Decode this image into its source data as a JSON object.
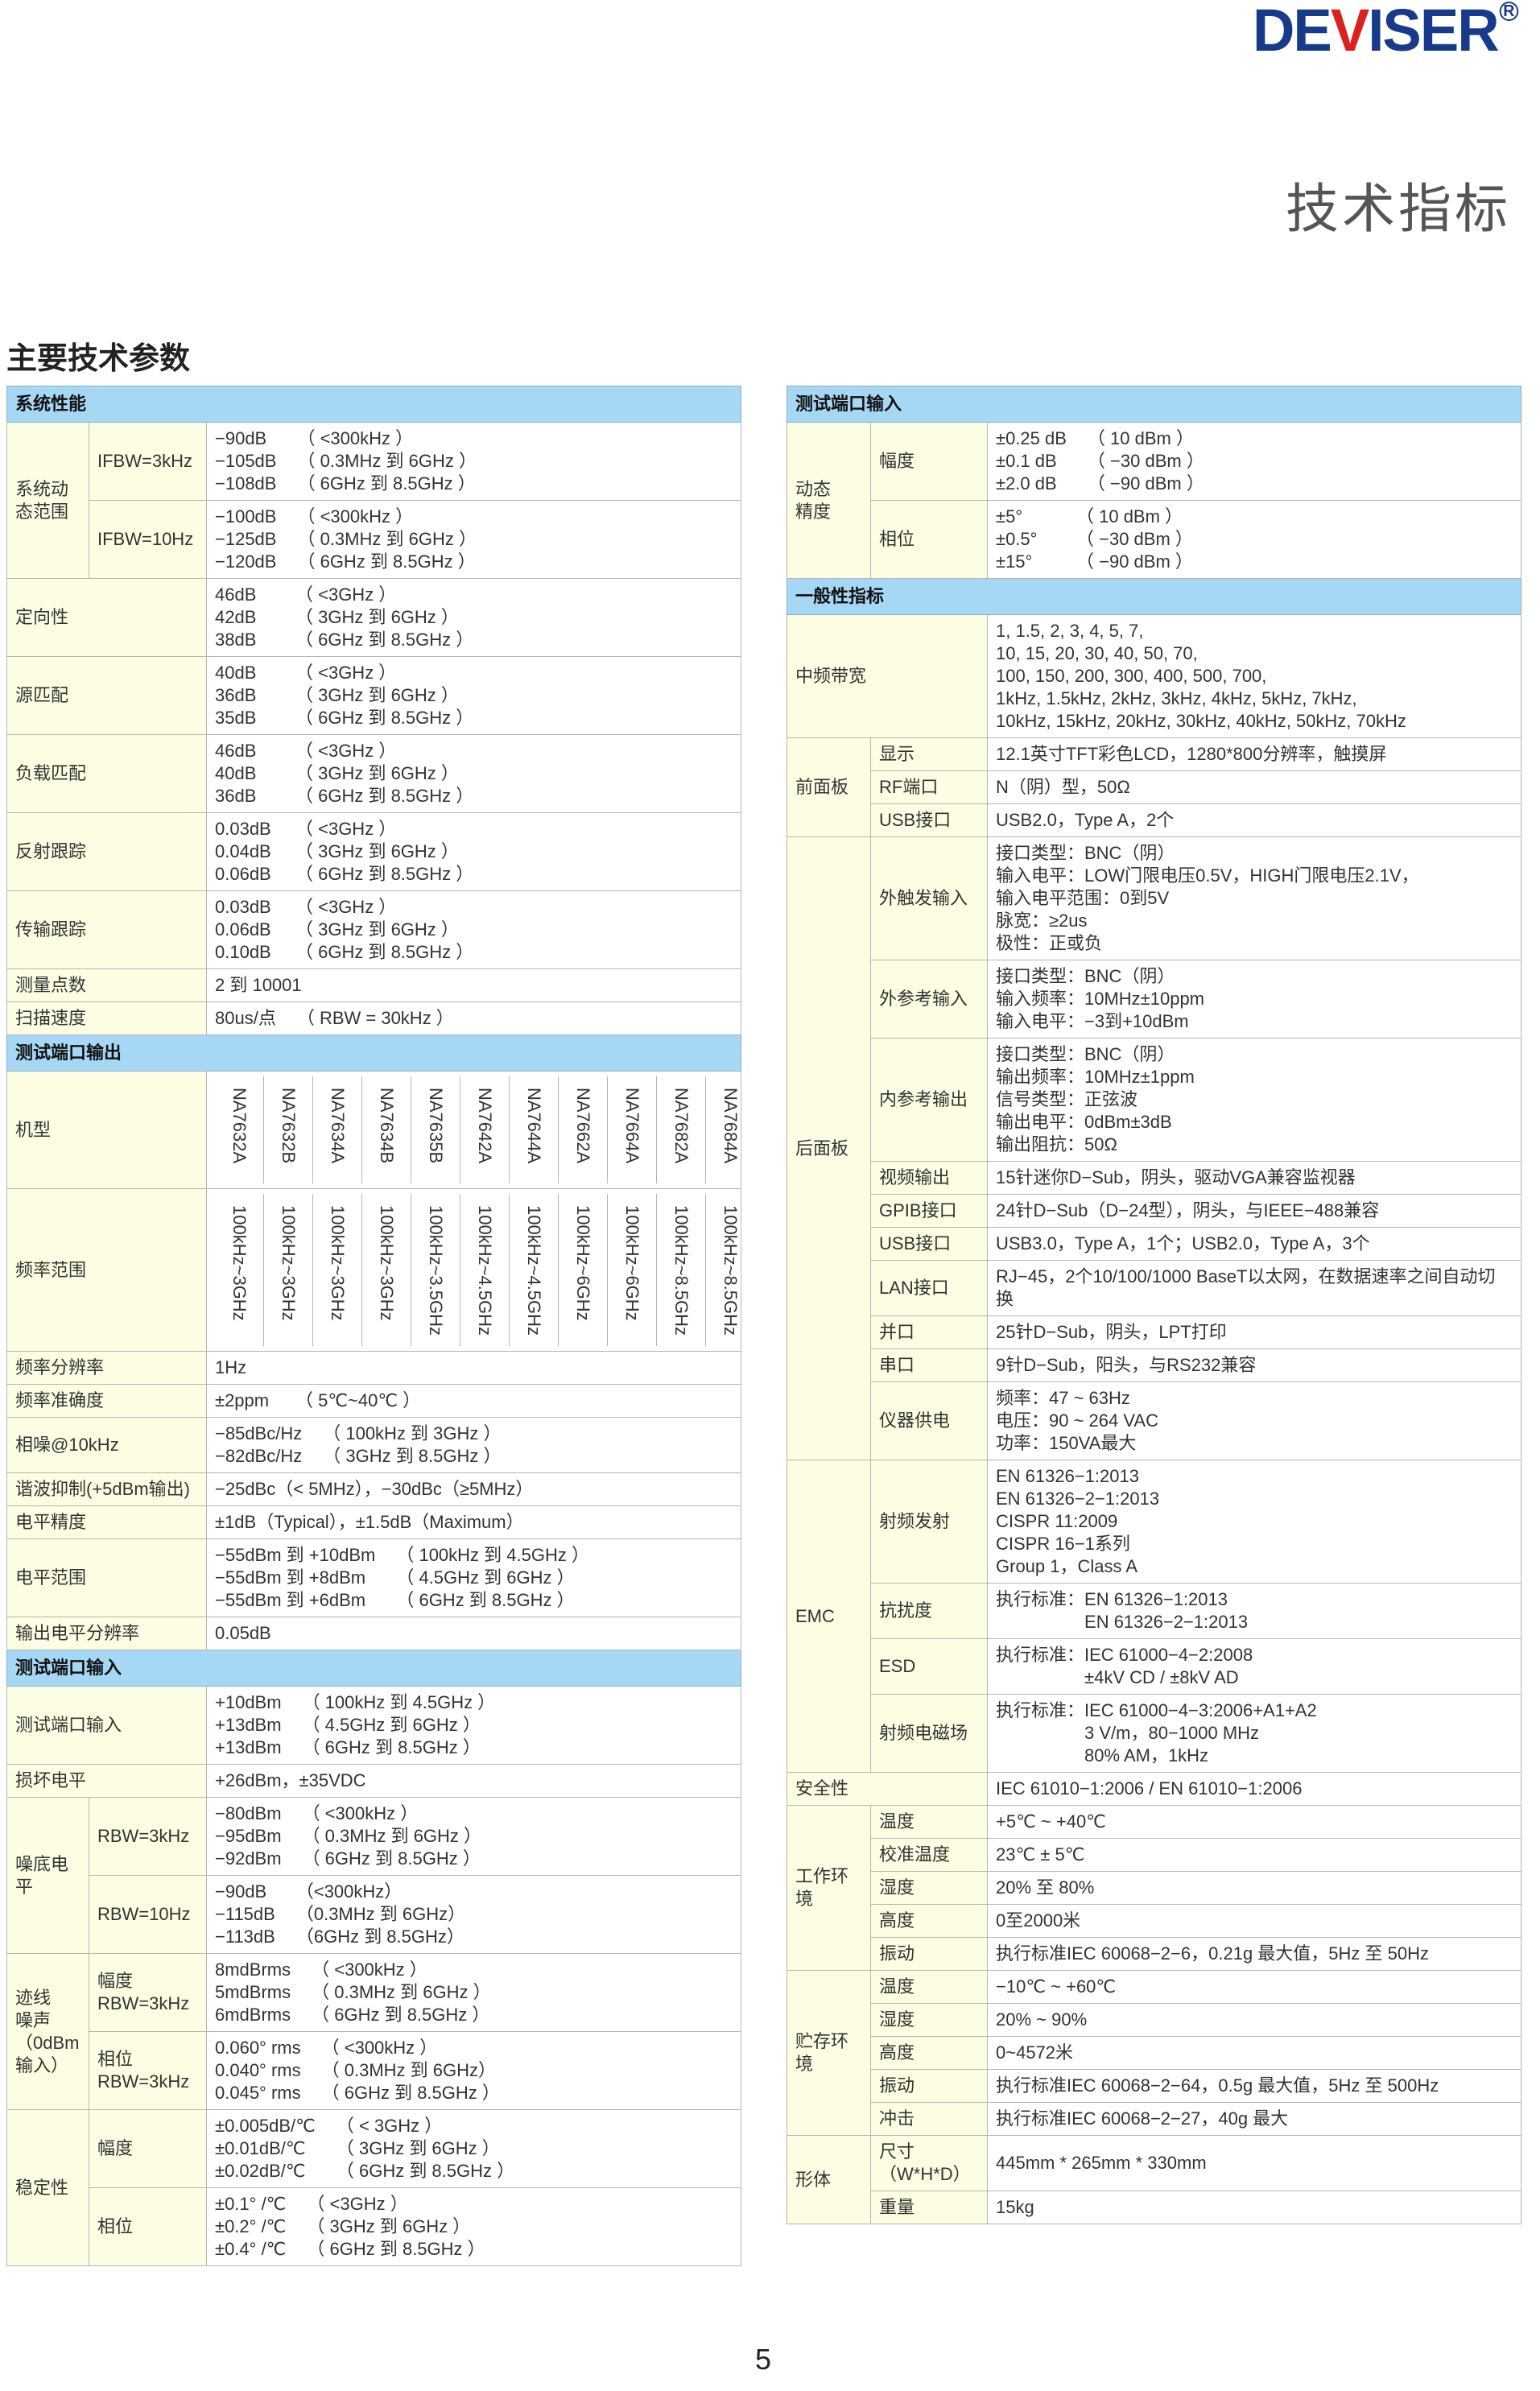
{
  "logo": {
    "text_d": "DE",
    "text_v": "V",
    "text_rest": "ISER",
    "registered": "R",
    "colors": {
      "blue": "#173b8a",
      "red": "#d9211e"
    }
  },
  "page_title": "技术指标",
  "section_title": "主要技术参数",
  "colors": {
    "header_bg": "#a6d7f4",
    "label_bg": "#fdfde4"
  },
  "left_table": [
    {
      "title": "系统性能",
      "rows": [
        {
          "label": "系统动态范围",
          "subrows": [
            {
              "label": "IFBW=3kHz",
              "lines": [
                [
                  "−90dB",
                  "（ <300kHz ）"
                ],
                [
                  "−105dB",
                  "（ 0.3MHz 到 6GHz ）"
                ],
                [
                  "−108dB",
                  "（ 6GHz 到 8.5GHz ）"
                ]
              ]
            },
            {
              "label": "IFBW=10Hz",
              "lines": [
                [
                  "−100dB",
                  "（ <300kHz ）"
                ],
                [
                  "−125dB",
                  "（ 0.3MHz 到 6GHz ）"
                ],
                [
                  "−120dB",
                  "（ 6GHz 到 8.5GHz ）"
                ]
              ]
            }
          ]
        },
        {
          "label": "定向性",
          "lines": [
            [
              "46dB",
              "（ <3GHz ）"
            ],
            [
              "42dB",
              "（ 3GHz 到 6GHz ）"
            ],
            [
              "38dB",
              "（ 6GHz 到 8.5GHz ）"
            ]
          ]
        },
        {
          "label": "源匹配",
          "lines": [
            [
              "40dB",
              "（ <3GHz ）"
            ],
            [
              "36dB",
              "（ 3GHz 到 6GHz ）"
            ],
            [
              "35dB",
              "（ 6GHz 到 8.5GHz ）"
            ]
          ]
        },
        {
          "label": "负载匹配",
          "lines": [
            [
              "46dB",
              "（ <3GHz ）"
            ],
            [
              "40dB",
              "（ 3GHz 到 6GHz ）"
            ],
            [
              "36dB",
              "（ 6GHz 到 8.5GHz ）"
            ]
          ]
        },
        {
          "label": "反射跟踪",
          "lines": [
            [
              "0.03dB",
              "（ <3GHz ）"
            ],
            [
              "0.04dB",
              "（ 3GHz 到 6GHz ）"
            ],
            [
              "0.06dB",
              "（ 6GHz 到 8.5GHz ）"
            ]
          ]
        },
        {
          "label": "传输跟踪",
          "lines": [
            [
              "0.03dB",
              "（ <3GHz ）"
            ],
            [
              "0.06dB",
              "（ 3GHz 到 6GHz ）"
            ],
            [
              "0.10dB",
              "（ 6GHz 到 8.5GHz ）"
            ]
          ]
        },
        {
          "label": "测量点数",
          "lines": [
            "2 到 10001"
          ]
        },
        {
          "label": "扫描速度",
          "lines": [
            [
              "80us/点",
              "（ RBW = 30kHz ）"
            ]
          ]
        }
      ]
    },
    {
      "title": "测试端口输出",
      "rows": [
        {
          "label": "机型",
          "vertical": [
            "NA7632A",
            "NA7632B",
            "NA7634A",
            "NA7634B",
            "NA7635B",
            "NA7642A",
            "NA7644A",
            "NA7662A",
            "NA7664A",
            "NA7682A",
            "NA7684A"
          ]
        },
        {
          "label": "频率范围",
          "vertical": [
            "100kHz~3GHz",
            "100kHz~3GHz",
            "100kHz~3GHz",
            "100kHz~3GHz",
            "100kHz~3.5GHz",
            "100kHz~4.5GHz",
            "100kHz~4.5GHz",
            "100kHz~6GHz",
            "100kHz~6GHz",
            "100kHz~8.5GHz",
            "100kHz~8.5GHz"
          ]
        },
        {
          "label": "频率分辨率",
          "lines": [
            "1Hz"
          ]
        },
        {
          "label": "频率准确度",
          "lines": [
            [
              "±2ppm",
              "（ 5℃~40℃ ）"
            ]
          ]
        },
        {
          "label": "相噪@10kHz",
          "lines": [
            [
              "−85dBc/Hz",
              "（ 100kHz 到 3GHz ）"
            ],
            [
              "−82dBc/Hz",
              "（ 3GHz 到 8.5GHz ）"
            ]
          ]
        },
        {
          "label": "谐波抑制(+5dBm输出)",
          "lines": [
            "−25dBc（< 5MHz），−30dBc（≥5MHz）"
          ]
        },
        {
          "label": "电平精度",
          "lines": [
            "±1dB（Typical），±1.5dB（Maximum）"
          ]
        },
        {
          "label": "电平范围",
          "lines": [
            [
              "−55dBm 到 +10dBm",
              "（ 100kHz 到 4.5GHz ）"
            ],
            [
              "−55dBm 到 +8dBm",
              "（ 4.5GHz 到 6GHz ）"
            ],
            [
              "−55dBm 到 +6dBm",
              "（ 6GHz 到 8.5GHz ）"
            ]
          ]
        },
        {
          "label": "输出电平分辨率",
          "lines": [
            "0.05dB"
          ]
        }
      ]
    },
    {
      "title": "测试端口输入",
      "rows": [
        {
          "label": "测试端口输入",
          "lines": [
            [
              "+10dBm",
              "（ 100kHz 到 4.5GHz ）"
            ],
            [
              "+13dBm",
              "（ 4.5GHz 到 6GHz ）"
            ],
            [
              "+13dBm",
              "（ 6GHz 到 8.5GHz ）"
            ]
          ]
        },
        {
          "label": "损坏电平",
          "lines": [
            "+26dBm，±35VDC"
          ]
        },
        {
          "label": "噪底电平",
          "subrows": [
            {
              "label": "RBW=3kHz",
              "lines": [
                [
                  "−80dBm",
                  "（ <300kHz ）"
                ],
                [
                  "−95dBm",
                  "（ 0.3MHz 到 6GHz ）"
                ],
                [
                  "−92dBm",
                  "（ 6GHz 到 8.5GHz ）"
                ]
              ]
            },
            {
              "label": "RBW=10Hz",
              "lines": [
                [
                  "−90dB",
                  "（<300kHz）"
                ],
                [
                  "−115dB",
                  "（0.3MHz 到 6GHz）"
                ],
                [
                  "−113dB",
                  "（6GHz 到 8.5GHz）"
                ]
              ]
            }
          ]
        },
        {
          "label": "迹线\n噪声\n（0dBm\n输入）",
          "subrows": [
            {
              "label": "幅度\nRBW=3kHz",
              "lines": [
                [
                  "8mdBrms",
                  "（ <300kHz ）"
                ],
                [
                  "5mdBrms",
                  "（ 0.3MHz 到 6GHz ）"
                ],
                [
                  "6mdBrms",
                  "（ 6GHz 到 8.5GHz ）"
                ]
              ]
            },
            {
              "label": "相位\nRBW=3kHz",
              "lines": [
                [
                  "0.060° rms",
                  "（ <300kHz ）"
                ],
                [
                  "0.040° rms",
                  "（ 0.3MHz 到 6GHz）"
                ],
                [
                  "0.045° rms",
                  "（ 6GHz 到 8.5GHz ）"
                ]
              ]
            }
          ]
        },
        {
          "label": "稳定性",
          "subrows": [
            {
              "label": "幅度",
              "lines": [
                [
                  "±0.005dB/℃",
                  "（ < 3GHz ）"
                ],
                [
                  "±0.01dB/℃",
                  "（ 3GHz 到 6GHz ）"
                ],
                [
                  "±0.02dB/℃",
                  "（ 6GHz 到 8.5GHz ）"
                ]
              ]
            },
            {
              "label": "相位",
              "lines": [
                [
                  "±0.1° /℃",
                  "（ <3GHz ）"
                ],
                [
                  "±0.2° /℃",
                  "（ 3GHz 到 6GHz ）"
                ],
                [
                  "±0.4° /℃",
                  "（ 6GHz 到 8.5GHz ）"
                ]
              ]
            }
          ]
        }
      ]
    }
  ],
  "right_table": [
    {
      "title": "测试端口输入",
      "rows": [
        {
          "label": "动态\n精度",
          "subrows": [
            {
              "label": "幅度",
              "lines": [
                [
                  "±0.25 dB",
                  "（ 10 dBm ）"
                ],
                [
                  "±0.1 dB",
                  "（ −30 dBm ）"
                ],
                [
                  "±2.0 dB",
                  "（ −90 dBm ）"
                ]
              ]
            },
            {
              "label": "相位",
              "lines": [
                [
                  "±5°",
                  "（ 10 dBm ）"
                ],
                [
                  "±0.5°",
                  "（ −30 dBm ）"
                ],
                [
                  "±15°",
                  "（ −90 dBm ）"
                ]
              ]
            }
          ]
        }
      ]
    },
    {
      "title": "一般性指标",
      "rows": [
        {
          "label": "中频带宽",
          "lines": [
            "1, 1.5, 2, 3, 4, 5, 7,",
            "10, 15, 20, 30, 40, 50, 70,",
            "100, 150, 200, 300, 400, 500, 700,",
            "1kHz, 1.5kHz, 2kHz, 3kHz, 4kHz, 5kHz, 7kHz,",
            "10kHz, 15kHz, 20kHz, 30kHz, 40kHz, 50kHz, 70kHz"
          ]
        },
        {
          "label": "前面板",
          "subrows": [
            {
              "label": "显示",
              "lines": [
                "12.1英寸TFT彩色LCD，1280*800分辨率，触摸屏"
              ]
            },
            {
              "label": "RF端口",
              "lines": [
                "N（阴）型，50Ω"
              ]
            },
            {
              "label": "USB接口",
              "lines": [
                "USB2.0，Type A，2个"
              ]
            }
          ]
        },
        {
          "label": "后面板",
          "subrows": [
            {
              "label": "外触发输入",
              "lines": [
                "接口类型：BNC（阴）",
                "输入电平：LOW门限电压0.5V，HIGH门限电压2.1V，",
                "输入电平范围：0到5V",
                "脉宽：≥2us",
                "极性：正或负"
              ]
            },
            {
              "label": "外参考输入",
              "lines": [
                "接口类型：BNC（阴）",
                "输入频率：10MHz±10ppm",
                "输入电平：−3到+10dBm"
              ]
            },
            {
              "label": "内参考输出",
              "lines": [
                "接口类型：BNC（阴）",
                "输出频率：10MHz±1ppm",
                "信号类型：正弦波",
                "输出电平：0dBm±3dB",
                "输出阻抗：50Ω"
              ]
            },
            {
              "label": "视频输出",
              "lines": [
                "15针迷你D−Sub，阴头，驱动VGA兼容监视器"
              ]
            },
            {
              "label": "GPIB接口",
              "lines": [
                "24针D−Sub（D−24型），阴头，与IEEE−488兼容"
              ]
            },
            {
              "label": "USB接口",
              "lines": [
                "USB3.0，Type A，1个；USB2.0，Type A，3个"
              ]
            },
            {
              "label": "LAN接口",
              "wrap": true,
              "lines": [
                "RJ−45，2个10/100/1000 BaseT以太网，在数据速率之间自动切换"
              ]
            },
            {
              "label": "并口",
              "lines": [
                "25针D−Sub，阴头，LPT打印"
              ]
            },
            {
              "label": "串口",
              "lines": [
                "9针D−Sub，阳头，与RS232兼容"
              ]
            },
            {
              "label": "仪器供电",
              "lines": [
                "频率：47 ~ 63Hz",
                "电压：90 ~ 264 VAC",
                "功率：150VA最大"
              ]
            }
          ]
        },
        {
          "label": "EMC",
          "subrows": [
            {
              "label": "射频发射",
              "lines": [
                "EN 61326−1:2013",
                "EN 61326−2−1:2013",
                "CISPR 11:2009",
                "CISPR 16−1系列",
                "Group 1，Class A"
              ]
            },
            {
              "label": "抗扰度",
              "lines": [
                [
                  "执行标准：",
                  "EN 61326−1:2013"
                ],
                [
                  "",
                  "EN 61326−2−1:2013"
                ]
              ]
            },
            {
              "label": "ESD",
              "lines": [
                [
                  "执行标准：",
                  "IEC 61000−4−2:2008"
                ],
                [
                  "",
                  "±4kV CD / ±8kV AD"
                ]
              ]
            },
            {
              "label": "射频电磁场",
              "lines": [
                [
                  "执行标准：",
                  "IEC 61000−4−3:2006+A1+A2"
                ],
                [
                  "",
                  "3 V/m，80−1000 MHz"
                ],
                [
                  "",
                  "80% AM，1kHz"
                ]
              ]
            }
          ]
        },
        {
          "label": "安全性",
          "lines": [
            "IEC 61010−1:2006 / EN 61010−1:2006"
          ]
        },
        {
          "label": "工作环境",
          "subrows": [
            {
              "label": "温度",
              "lines": [
                "+5℃ ~ +40℃"
              ]
            },
            {
              "label": "校准温度",
              "lines": [
                "23℃ ± 5℃"
              ]
            },
            {
              "label": "湿度",
              "lines": [
                "20% 至 80%"
              ]
            },
            {
              "label": "高度",
              "lines": [
                "0至2000米"
              ]
            },
            {
              "label": "振动",
              "lines": [
                "执行标准IEC 60068−2−6，0.21g 最大值，5Hz 至 50Hz"
              ]
            }
          ]
        },
        {
          "label": "贮存环境",
          "subrows": [
            {
              "label": "温度",
              "lines": [
                "−10℃ ~ +60℃"
              ]
            },
            {
              "label": "湿度",
              "lines": [
                "20% ~ 90%"
              ]
            },
            {
              "label": "高度",
              "lines": [
                "0~4572米"
              ]
            },
            {
              "label": "振动",
              "lines": [
                "执行标准IEC 60068−2−64，0.5g 最大值，5Hz 至 500Hz"
              ]
            },
            {
              "label": "冲击",
              "lines": [
                "执行标准IEC 60068−2−27，40g 最大"
              ]
            }
          ]
        },
        {
          "label": "形体",
          "subrows": [
            {
              "label": "尺寸\n（W*H*D）",
              "lines": [
                "445mm * 265mm * 330mm"
              ]
            },
            {
              "label": "重量",
              "lines": [
                "15kg"
              ]
            }
          ]
        }
      ]
    }
  ],
  "page_number": "5"
}
